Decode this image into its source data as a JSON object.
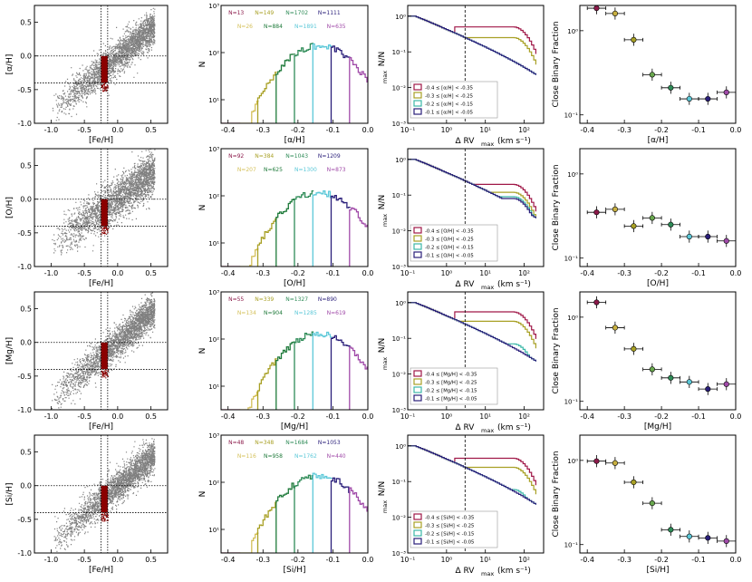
{
  "figure": {
    "rows": [
      "alpha",
      "O",
      "Mg",
      "Si"
    ]
  },
  "chart_data": [
    {
      "row": "alpha",
      "type": "scatter",
      "panel": "element-vs-iron",
      "xlabel": "[Fe/H]",
      "ylabel": "[α/H]",
      "xlim": [
        -1.25,
        0.75
      ],
      "ylim": [
        -1.0,
        0.75
      ],
      "xticks": [
        "-1.0",
        "-0.5",
        "0.0",
        "0.5"
      ],
      "yticks": [
        "-1.0",
        "-0.5",
        "0.0",
        "0.5"
      ],
      "selection_box": {
        "x": [
          -0.25,
          -0.15
        ],
        "y": [
          -0.4,
          0.0
        ]
      },
      "guides": {
        "x": [
          -0.25,
          -0.15
        ],
        "y": [
          -0.4,
          0.0
        ]
      },
      "cloud": {
        "xmin": -1.0,
        "xmax": 0.55,
        "slope": 0.82,
        "intercept": 0.0,
        "spread": 0.12
      }
    },
    {
      "row": "alpha",
      "type": "histogram",
      "panel": "abundance-histogram",
      "xlabel": "[α/H]",
      "ylabel": "N",
      "xlim": [
        -0.42,
        0.0
      ],
      "xticks": [
        "-0.4",
        "-0.3",
        "-0.2",
        "-0.1",
        "0.0"
      ],
      "yticks": [
        "10¹",
        "10²",
        "10³"
      ],
      "yrange_log": [
        0.5,
        3.0
      ],
      "peak": 140,
      "bin_annotations": [
        {
          "label": "N=13",
          "color": "#8b1a4a"
        },
        {
          "label": "N=149",
          "color": "#a8a025"
        },
        {
          "label": "N=1702",
          "color": "#2e8b57"
        },
        {
          "label": "N=1111",
          "color": "#2a1f7a"
        },
        {
          "label": "N=26",
          "color": "#d4c05a"
        },
        {
          "label": "N=884",
          "color": "#1e7a3a"
        },
        {
          "label": "N=1891",
          "color": "#5bc8d8"
        },
        {
          "label": "N=635",
          "color": "#a04aa8"
        }
      ]
    },
    {
      "row": "alpha",
      "type": "line",
      "panel": "cumulative-rv",
      "xlabel": "Δ RV",
      "xlabel_sub": "max",
      "xlabel_unit": "(km s⁻¹)",
      "ylabel": "N/N",
      "ylabel_sub": "max",
      "xlim_log": [
        -1,
        2.5
      ],
      "ylim_log": [
        -3,
        0.3
      ],
      "xticks": [
        "10⁻¹",
        "10⁰",
        "10¹",
        "10²"
      ],
      "yticks": [
        "10⁻³",
        "10⁻²",
        "10⁻¹",
        "10⁰"
      ],
      "guide_x": 3,
      "legend_position": "lower-left",
      "series": [
        {
          "name": "-0.4 ≤ [α/H] < -0.35",
          "color": "#a01848",
          "tail": 0.5
        },
        {
          "name": "-0.3 ≤ [α/H] < -0.25",
          "color": "#a8a025",
          "tail": 0.25
        },
        {
          "name": "-0.2 ≤ [α/H] < -0.15",
          "color": "#3cb8a8",
          "tail": 0.05
        },
        {
          "name": "-0.1 ≤ [α/H] < -0.05",
          "color": "#2a1f7a",
          "tail": 0.03
        }
      ]
    },
    {
      "row": "alpha",
      "type": "scatter",
      "panel": "binary-fraction",
      "xlabel": "[α/H]",
      "ylabel": "Close Binary Fraction",
      "xlim": [
        -0.42,
        0.0
      ],
      "ylim_log": [
        -1.1,
        0.3
      ],
      "xticks": [
        "-0.4",
        "-0.3",
        "-0.2",
        "-0.1",
        "0.0"
      ],
      "yticks": [
        "10⁻¹",
        "10⁰"
      ],
      "points": [
        {
          "x": -0.375,
          "y": 1.85,
          "color": "#8b1a4a"
        },
        {
          "x": -0.325,
          "y": 1.6,
          "color": "#c8b040"
        },
        {
          "x": -0.275,
          "y": 0.78,
          "color": "#a8a025"
        },
        {
          "x": -0.225,
          "y": 0.3,
          "color": "#6aa84f"
        },
        {
          "x": -0.175,
          "y": 0.21,
          "color": "#2e8b57"
        },
        {
          "x": -0.125,
          "y": 0.155,
          "color": "#5bc8d8"
        },
        {
          "x": -0.075,
          "y": 0.155,
          "color": "#2a1f7a"
        },
        {
          "x": -0.025,
          "y": 0.185,
          "color": "#a04aa8"
        }
      ]
    },
    {
      "row": "O",
      "type": "scatter",
      "panel": "element-vs-iron",
      "xlabel": "[Fe/H]",
      "ylabel": "[O/H]",
      "xlim": [
        -1.25,
        0.75
      ],
      "ylim": [
        -1.0,
        0.75
      ],
      "xticks": [
        "-1.0",
        "-0.5",
        "0.0",
        "0.5"
      ],
      "yticks": [
        "-1.0",
        "-0.5",
        "0.0",
        "0.5"
      ],
      "selection_box": {
        "x": [
          -0.25,
          -0.15
        ],
        "y": [
          -0.4,
          0.0
        ]
      },
      "guides": {
        "x": [
          -0.25,
          -0.15
        ],
        "y": [
          -0.4,
          0.0
        ]
      },
      "cloud": {
        "xmin": -1.0,
        "xmax": 0.55,
        "slope": 0.7,
        "intercept": 0.02,
        "spread": 0.15
      }
    },
    {
      "row": "O",
      "type": "histogram",
      "panel": "abundance-histogram",
      "xlabel": "[O/H]",
      "ylabel": "N",
      "xlim": [
        -0.42,
        0.0
      ],
      "xticks": [
        "-0.4",
        "-0.3",
        "-0.2",
        "-0.1",
        "0.0"
      ],
      "yticks": [
        "10¹",
        "10²",
        "10³"
      ],
      "yrange_log": [
        0.5,
        3.0
      ],
      "peak": 120,
      "bin_annotations": [
        {
          "label": "N=92",
          "color": "#8b1a4a"
        },
        {
          "label": "N=384",
          "color": "#a8a025"
        },
        {
          "label": "N=1043",
          "color": "#2e8b57"
        },
        {
          "label": "N=1209",
          "color": "#2a1f7a"
        },
        {
          "label": "N=207",
          "color": "#d4c05a"
        },
        {
          "label": "N=625",
          "color": "#1e7a3a"
        },
        {
          "label": "N=1300",
          "color": "#5bc8d8"
        },
        {
          "label": "N=873",
          "color": "#a04aa8"
        }
      ]
    },
    {
      "row": "O",
      "type": "line",
      "panel": "cumulative-rv",
      "xlabel": "Δ RV",
      "xlabel_sub": "max",
      "xlabel_unit": "(km s⁻¹)",
      "ylabel": "N/N",
      "ylabel_sub": "max",
      "xlim_log": [
        -1,
        2.5
      ],
      "ylim_log": [
        -3,
        0.3
      ],
      "xticks": [
        "10⁻¹",
        "10⁰",
        "10¹",
        "10²"
      ],
      "yticks": [
        "10⁻³",
        "10⁻²",
        "10⁻¹",
        "10⁰"
      ],
      "guide_x": 3,
      "legend_position": "lower-left",
      "series": [
        {
          "name": "-0.4 ≤ [O/H] < -0.35",
          "color": "#a01848",
          "tail": 0.2
        },
        {
          "name": "-0.3 ≤ [O/H] < -0.25",
          "color": "#a8a025",
          "tail": 0.12
        },
        {
          "name": "-0.2 ≤ [O/H] < -0.15",
          "color": "#3cb8a8",
          "tail": 0.09
        },
        {
          "name": "-0.1 ≤ [O/H] < -0.05",
          "color": "#2a1f7a",
          "tail": 0.08
        }
      ]
    },
    {
      "row": "O",
      "type": "scatter",
      "panel": "binary-fraction",
      "xlabel": "[O/H]",
      "ylabel": "Close Binary Fraction",
      "xlim": [
        -0.42,
        0.0
      ],
      "ylim_log": [
        -1.1,
        0.3
      ],
      "xticks": [
        "-0.4",
        "-0.3",
        "-0.2",
        "-0.1",
        "0.0"
      ],
      "yticks": [
        "10⁻¹",
        "10⁰"
      ],
      "points": [
        {
          "x": -0.375,
          "y": 0.35,
          "color": "#8b1a4a"
        },
        {
          "x": -0.325,
          "y": 0.38,
          "color": "#c8b040"
        },
        {
          "x": -0.275,
          "y": 0.24,
          "color": "#a8a025"
        },
        {
          "x": -0.225,
          "y": 0.3,
          "color": "#6aa84f"
        },
        {
          "x": -0.175,
          "y": 0.25,
          "color": "#2e8b57"
        },
        {
          "x": -0.125,
          "y": 0.18,
          "color": "#5bc8d8"
        },
        {
          "x": -0.075,
          "y": 0.18,
          "color": "#2a1f7a"
        },
        {
          "x": -0.025,
          "y": 0.16,
          "color": "#a04aa8"
        }
      ]
    },
    {
      "row": "Mg",
      "type": "scatter",
      "panel": "element-vs-iron",
      "xlabel": "[Fe/H]",
      "ylabel": "[Mg/H]",
      "xlim": [
        -1.25,
        0.75
      ],
      "ylim": [
        -1.0,
        0.75
      ],
      "xticks": [
        "-1.0",
        "-0.5",
        "0.0",
        "0.5"
      ],
      "yticks": [
        "-1.0",
        "-0.5",
        "0.0",
        "0.5"
      ],
      "selection_box": {
        "x": [
          -0.25,
          -0.15
        ],
        "y": [
          -0.4,
          0.0
        ]
      },
      "guides": {
        "x": [
          -0.25,
          -0.15
        ],
        "y": [
          -0.4,
          0.0
        ]
      },
      "cloud": {
        "xmin": -1.0,
        "xmax": 0.55,
        "slope": 0.85,
        "intercept": 0.02,
        "spread": 0.12
      }
    },
    {
      "row": "Mg",
      "type": "histogram",
      "panel": "abundance-histogram",
      "xlabel": "[Mg/H]",
      "ylabel": "N",
      "xlim": [
        -0.42,
        0.0
      ],
      "xticks": [
        "-0.4",
        "-0.3",
        "-0.2",
        "-0.1",
        "0.0"
      ],
      "yticks": [
        "10¹",
        "10²",
        "10³"
      ],
      "yrange_log": [
        0.5,
        3.0
      ],
      "peak": 130,
      "bin_annotations": [
        {
          "label": "N=55",
          "color": "#8b1a4a"
        },
        {
          "label": "N=339",
          "color": "#a8a025"
        },
        {
          "label": "N=1327",
          "color": "#2e8b57"
        },
        {
          "label": "N=890",
          "color": "#2a1f7a"
        },
        {
          "label": "N=134",
          "color": "#d4c05a"
        },
        {
          "label": "N=904",
          "color": "#1e7a3a"
        },
        {
          "label": "N=1285",
          "color": "#5bc8d8"
        },
        {
          "label": "N=619",
          "color": "#a04aa8"
        }
      ]
    },
    {
      "row": "Mg",
      "type": "line",
      "panel": "cumulative-rv",
      "xlabel": "Δ RV",
      "xlabel_sub": "max",
      "xlabel_unit": "(km s⁻¹)",
      "ylabel": "N/N",
      "ylabel_sub": "max",
      "xlim_log": [
        -1,
        2.5
      ],
      "ylim_log": [
        -3,
        0.3
      ],
      "xticks": [
        "10⁻¹",
        "10⁰",
        "10¹",
        "10²"
      ],
      "yticks": [
        "10⁻³",
        "10⁻²",
        "10⁻¹",
        "10⁰"
      ],
      "guide_x": 3,
      "legend_position": "lower-left",
      "series": [
        {
          "name": "-0.4 ≤ [Mg/H] < -0.35",
          "color": "#a01848",
          "tail": 0.55
        },
        {
          "name": "-0.3 ≤ [Mg/H] < -0.25",
          "color": "#a8a025",
          "tail": 0.3
        },
        {
          "name": "-0.2 ≤ [Mg/H] < -0.15",
          "color": "#3cb8a8",
          "tail": 0.07
        },
        {
          "name": "-0.1 ≤ [Mg/H] < -0.05",
          "color": "#2a1f7a",
          "tail": 0.03
        }
      ]
    },
    {
      "row": "Mg",
      "type": "scatter",
      "panel": "binary-fraction",
      "xlabel": "[Mg/H]",
      "ylabel": "Close Binary Fraction",
      "xlim": [
        -0.42,
        0.0
      ],
      "ylim_log": [
        -1.1,
        0.3
      ],
      "xticks": [
        "-0.4",
        "-0.3",
        "-0.2",
        "-0.1",
        "0.0"
      ],
      "yticks": [
        "10⁻¹",
        "10⁰"
      ],
      "points": [
        {
          "x": -0.375,
          "y": 1.5,
          "color": "#8b1a4a"
        },
        {
          "x": -0.325,
          "y": 0.75,
          "color": "#c8b040"
        },
        {
          "x": -0.275,
          "y": 0.42,
          "color": "#a8a025"
        },
        {
          "x": -0.225,
          "y": 0.24,
          "color": "#6aa84f"
        },
        {
          "x": -0.175,
          "y": 0.19,
          "color": "#2e8b57"
        },
        {
          "x": -0.125,
          "y": 0.17,
          "color": "#5bc8d8"
        },
        {
          "x": -0.075,
          "y": 0.14,
          "color": "#2a1f7a"
        },
        {
          "x": -0.025,
          "y": 0.16,
          "color": "#a04aa8"
        }
      ]
    },
    {
      "row": "Si",
      "type": "scatter",
      "panel": "element-vs-iron",
      "xlabel": "[Fe/H]",
      "ylabel": "[Si/H]",
      "xlim": [
        -1.25,
        0.75
      ],
      "ylim": [
        -1.0,
        0.75
      ],
      "xticks": [
        "-1.0",
        "-0.5",
        "0.0",
        "0.5"
      ],
      "yticks": [
        "-1.0",
        "-0.5",
        "0.0",
        "0.5"
      ],
      "selection_box": {
        "x": [
          -0.25,
          -0.15
        ],
        "y": [
          -0.4,
          0.0
        ]
      },
      "guides": {
        "x": [
          -0.25,
          -0.15
        ],
        "y": [
          -0.4,
          0.0
        ]
      },
      "cloud": {
        "xmin": -1.0,
        "xmax": 0.55,
        "slope": 0.83,
        "intercept": 0.0,
        "spread": 0.12
      }
    },
    {
      "row": "Si",
      "type": "histogram",
      "panel": "abundance-histogram",
      "xlabel": "[Si/H]",
      "ylabel": "N",
      "xlim": [
        -0.42,
        0.0
      ],
      "xticks": [
        "-0.4",
        "-0.3",
        "-0.2",
        "-0.1",
        "0.0"
      ],
      "yticks": [
        "10¹",
        "10²",
        "10³"
      ],
      "yrange_log": [
        0.5,
        3.0
      ],
      "peak": 140,
      "bin_annotations": [
        {
          "label": "N=48",
          "color": "#8b1a4a"
        },
        {
          "label": "N=348",
          "color": "#a8a025"
        },
        {
          "label": "N=1684",
          "color": "#2e8b57"
        },
        {
          "label": "N=1053",
          "color": "#2a1f7a"
        },
        {
          "label": "N=116",
          "color": "#d4c05a"
        },
        {
          "label": "N=958",
          "color": "#1e7a3a"
        },
        {
          "label": "N=1762",
          "color": "#5bc8d8"
        },
        {
          "label": "N=440",
          "color": "#a04aa8"
        }
      ]
    },
    {
      "row": "Si",
      "type": "line",
      "panel": "cumulative-rv",
      "xlabel": "Δ RV",
      "xlabel_sub": "max",
      "xlabel_unit": "(km s⁻¹)",
      "ylabel": "N/N",
      "ylabel_sub": "max",
      "xlim_log": [
        -1,
        2.5
      ],
      "ylim_log": [
        -3,
        0.3
      ],
      "xticks": [
        "10⁻¹",
        "10⁰",
        "10¹",
        "10²"
      ],
      "yticks": [
        "10⁻³",
        "10⁻²",
        "10⁻¹",
        "10⁰"
      ],
      "guide_x": 3,
      "legend_position": "lower-left",
      "series": [
        {
          "name": "-0.4 ≤ [Si/H] < -0.35",
          "color": "#a01848",
          "tail": 0.45
        },
        {
          "name": "-0.3 ≤ [Si/H] < -0.25",
          "color": "#a8a025",
          "tail": 0.25
        },
        {
          "name": "-0.2 ≤ [Si/H] < -0.15",
          "color": "#3cb8a8",
          "tail": 0.06
        },
        {
          "name": "-0.1 ≤ [Si/H] < -0.05",
          "color": "#2a1f7a",
          "tail": 0.03
        }
      ]
    },
    {
      "row": "Si",
      "type": "scatter",
      "panel": "binary-fraction",
      "xlabel": "[Si/H]",
      "ylabel": "Close Binary Fraction",
      "xlim": [
        -0.42,
        0.0
      ],
      "ylim_log": [
        -1.1,
        0.3
      ],
      "xticks": [
        "-0.4",
        "-0.3",
        "-0.2",
        "-0.1",
        "0.0"
      ],
      "yticks": [
        "10⁻¹",
        "10⁰"
      ],
      "points": [
        {
          "x": -0.375,
          "y": 0.98,
          "color": "#8b1a4a"
        },
        {
          "x": -0.325,
          "y": 0.93,
          "color": "#c8b040"
        },
        {
          "x": -0.275,
          "y": 0.55,
          "color": "#a8a025"
        },
        {
          "x": -0.225,
          "y": 0.31,
          "color": "#6aa84f"
        },
        {
          "x": -0.175,
          "y": 0.15,
          "color": "#2e8b57"
        },
        {
          "x": -0.125,
          "y": 0.125,
          "color": "#5bc8d8"
        },
        {
          "x": -0.075,
          "y": 0.12,
          "color": "#2a1f7a"
        },
        {
          "x": -0.025,
          "y": 0.11,
          "color": "#a04aa8"
        }
      ]
    }
  ]
}
